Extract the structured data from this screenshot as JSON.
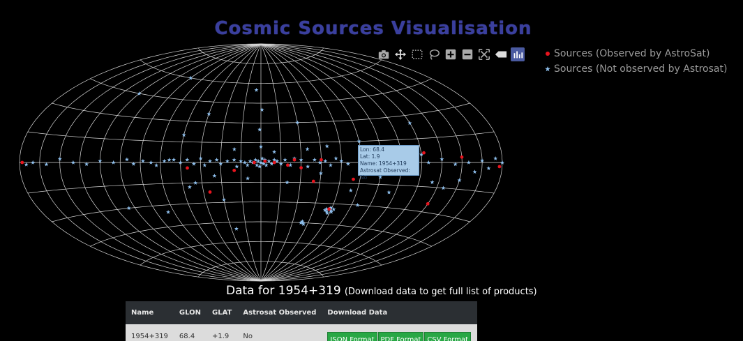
{
  "header": {
    "title": "Cosmic Sources Visualisation"
  },
  "modebar": {
    "icons": [
      "camera-icon",
      "pan-icon",
      "box-select-icon",
      "lasso-icon",
      "zoom-in-icon",
      "zoom-out-icon",
      "autoscale-icon",
      "reset-axes-icon",
      "plotly-logo-icon"
    ]
  },
  "legend": {
    "items": [
      {
        "label": "Sources (Observed by AstroSat)",
        "color": "#e8141e"
      },
      {
        "label": "Sources (Not observed by Astrosat)",
        "color": "#8fc0ee"
      }
    ]
  },
  "hover": {
    "lon": "Lon: 68.4",
    "lat": "Lat: 1.9",
    "name": "Name: 1954+319",
    "observed": "Astrosat Observed: No"
  },
  "data_section": {
    "heading_main": "Data for 1954+319",
    "heading_note": "(Download data to get full list of products)"
  },
  "table": {
    "headers": [
      "Name",
      "GLON",
      "GLAT",
      "Astrosat Observed",
      "Download Data"
    ],
    "row": {
      "name": "1954+319",
      "glon": "68.4",
      "glat": "+1.9",
      "observed": "No"
    },
    "buttons": [
      "JSON Format",
      "PDF Format",
      "CSV Format"
    ]
  },
  "chart_data": {
    "type": "scatter",
    "projection": "aitoff",
    "grid": true,
    "legend_position": "top-right",
    "xlim": [
      -180,
      180
    ],
    "ylim": [
      -90,
      90
    ],
    "series": [
      {
        "name": "Sources (Observed by AstroSat)",
        "color": "#e8141e",
        "points": [
          [
            178,
            0
          ],
          [
            -70,
            -12
          ],
          [
            -45,
            2
          ],
          [
            -10,
            0
          ],
          [
            -3,
            1
          ],
          [
            5,
            0
          ],
          [
            -20,
            -2
          ],
          [
            -25,
            2
          ],
          [
            40,
            -22
          ],
          [
            -150,
            3
          ],
          [
            -58,
            -34
          ],
          [
            -40,
            -14
          ],
          [
            -135,
            -25
          ],
          [
            -178,
            -2
          ],
          [
            -105,
            -3
          ],
          [
            -122,
            6
          ],
          [
            -30,
            -4
          ],
          [
            20,
            -6
          ],
          [
            55,
            -4
          ]
        ]
      },
      {
        "name": "Sources (Not observed by Astrosat)",
        "color": "#8fc0ee",
        "points": [
          [
            0,
            0
          ],
          [
            2,
            1
          ],
          [
            -2,
            -1
          ],
          [
            4,
            2
          ],
          [
            -4,
            -2
          ],
          [
            6,
            0
          ],
          [
            -6,
            1
          ],
          [
            1,
            -3
          ],
          [
            -1,
            3
          ],
          [
            3,
            -2
          ],
          [
            -3,
            2
          ],
          [
            8,
            1
          ],
          [
            -8,
            -1
          ],
          [
            10,
            -2
          ],
          [
            -10,
            2
          ],
          [
            12,
            0
          ],
          [
            -12,
            1
          ],
          [
            15,
            1
          ],
          [
            -15,
            -1
          ],
          [
            18,
            -3
          ],
          [
            -18,
            2
          ],
          [
            20,
            2
          ],
          [
            -22,
            -2
          ],
          [
            25,
            1
          ],
          [
            -25,
            3
          ],
          [
            30,
            -1
          ],
          [
            -30,
            2
          ],
          [
            33,
            2
          ],
          [
            -35,
            -3
          ],
          [
            38,
            1
          ],
          [
            -40,
            2
          ],
          [
            42,
            -2
          ],
          [
            -44,
            0
          ],
          [
            45,
            3
          ],
          [
            -48,
            1
          ],
          [
            50,
            -1
          ],
          [
            -52,
            -2
          ],
          [
            55,
            2
          ],
          [
            -56,
            3
          ],
          [
            60,
            0
          ],
          [
            -60,
            1
          ],
          [
            65,
            2
          ],
          [
            -65,
            -1
          ],
          [
            68.4,
            1.9
          ],
          [
            72,
            1
          ],
          [
            -75,
            3
          ],
          [
            78,
            -2
          ],
          [
            -80,
            1
          ],
          [
            82,
            0
          ],
          [
            -85,
            -2
          ],
          [
            88,
            1
          ],
          [
            -90,
            2
          ],
          [
            95,
            -1
          ],
          [
            -98,
            0
          ],
          [
            100,
            2
          ],
          [
            -105,
            1
          ],
          [
            110,
            0
          ],
          [
            -112,
            -2
          ],
          [
            120,
            1
          ],
          [
            -125,
            0
          ],
          [
            130,
            -1
          ],
          [
            -135,
            2
          ],
          [
            140,
            0
          ],
          [
            -145,
            -1
          ],
          [
            150,
            2
          ],
          [
            -155,
            0
          ],
          [
            160,
            -1
          ],
          [
            -165,
            1
          ],
          [
            170,
            0
          ],
          [
            -175,
            2
          ],
          [
            175,
            -1
          ],
          [
            -170,
            -3
          ],
          [
            -180,
            0
          ],
          [
            0,
            12
          ],
          [
            1,
            25
          ],
          [
            -1,
            40
          ],
          [
            5,
            55
          ],
          [
            -30,
            30
          ],
          [
            45,
            36
          ],
          [
            60,
            20
          ],
          [
            90,
            60
          ],
          [
            120,
            45
          ],
          [
            -120,
            25
          ],
          [
            -100,
            -20
          ],
          [
            -130,
            -12
          ],
          [
            -80,
            -30
          ],
          [
            -60,
            -35
          ],
          [
            -59,
            -33
          ],
          [
            -57,
            -36
          ],
          [
            -56,
            -34
          ],
          [
            -61,
            -36
          ],
          [
            -62,
            -34
          ],
          [
            -58,
            -37
          ],
          [
            -55,
            -35
          ],
          [
            -40,
            -45
          ],
          [
            -39,
            -44
          ],
          [
            -41,
            -46
          ],
          [
            -38,
            -45
          ],
          [
            30,
            -28
          ],
          [
            50,
            -15
          ],
          [
            80,
            -35
          ],
          [
            110,
            -30
          ],
          [
            -150,
            -10
          ],
          [
            -140,
            -15
          ],
          [
            -90,
            -10
          ],
          [
            -70,
            -20
          ],
          [
            -45,
            -8
          ],
          [
            -20,
            -15
          ],
          [
            10,
            -12
          ],
          [
            35,
            -10
          ],
          [
            55,
            -18
          ],
          [
            20,
            10
          ],
          [
            -10,
            8
          ],
          [
            -35,
            10
          ],
          [
            -50,
            12
          ],
          [
            -75,
            15
          ],
          [
            25,
            -50
          ],
          [
            -120,
            5
          ],
          [
            -160,
            -5
          ]
        ]
      }
    ]
  }
}
